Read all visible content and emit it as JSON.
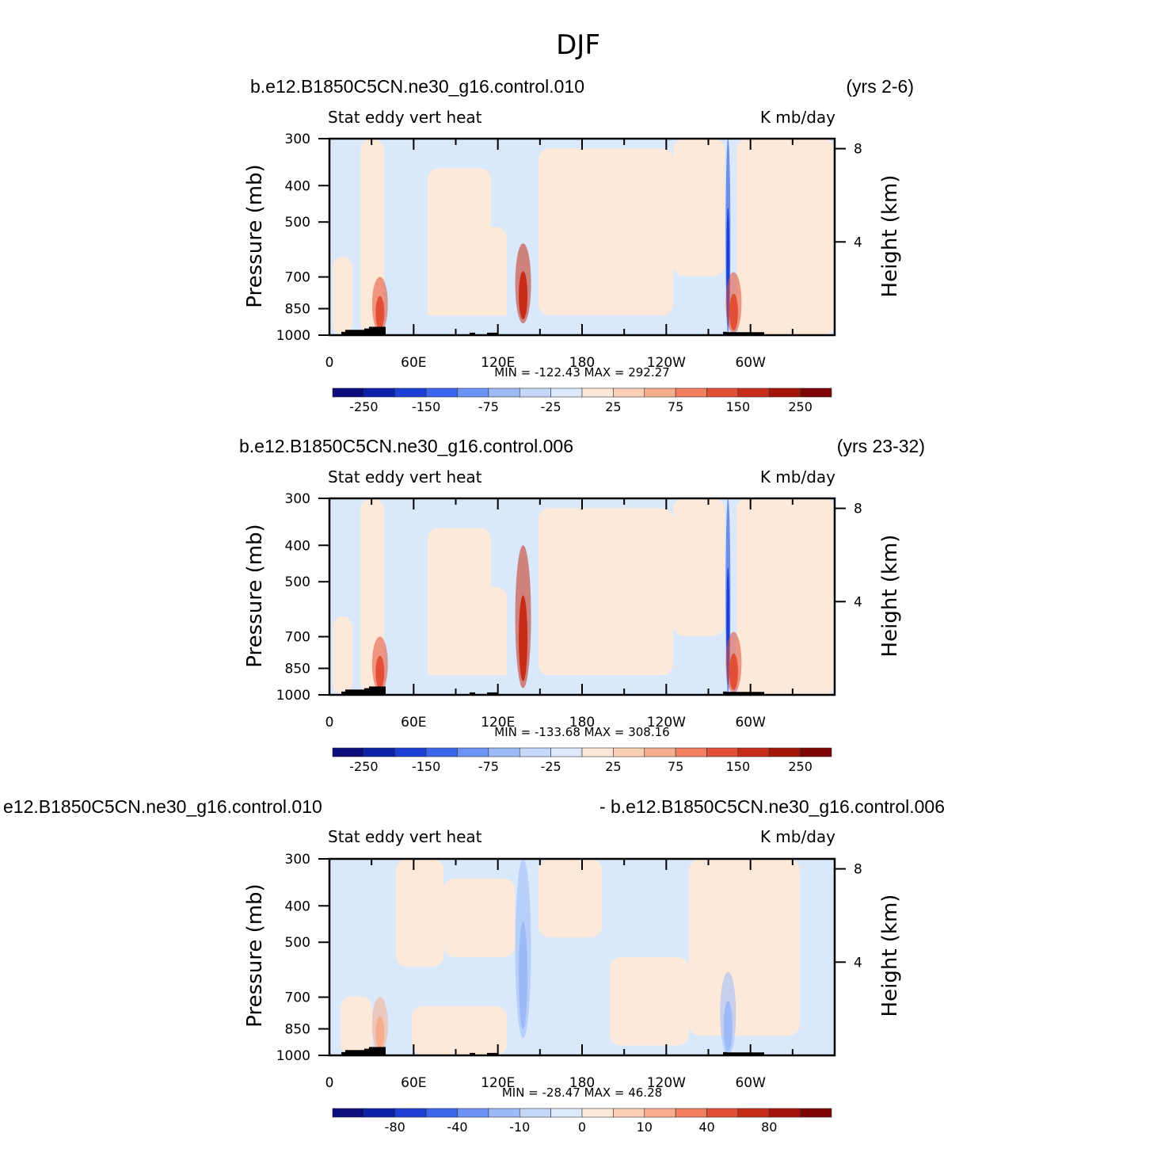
{
  "figure_title": "DJF",
  "panels": [
    {
      "case_name": "b.e12.B1850C5CN.ne30_g16.control.010",
      "years": "(yrs 2-6)",
      "variable_label": "Stat eddy vert heat",
      "units_label": "K mb/day",
      "ylabel_left": "Pressure (mb)",
      "ylabel_right": "Height (km)",
      "stats": "MIN = -122.43   MAX = 292.27",
      "colorbar_labels": [
        "-250",
        "-150",
        "-75",
        "-25",
        "25",
        "75",
        "150",
        "250"
      ]
    },
    {
      "case_name": "b.e12.B1850C5CN.ne30_g16.control.006",
      "years": "(yrs 23-32)",
      "variable_label": "Stat eddy vert heat",
      "units_label": "K mb/day",
      "ylabel_left": "Pressure (mb)",
      "ylabel_right": "Height (km)",
      "stats": "MIN = -133.68   MAX = 308.16",
      "colorbar_labels": [
        "-250",
        "-150",
        "-75",
        "-25",
        "25",
        "75",
        "150",
        "250"
      ]
    },
    {
      "case_name": "e12.B1850C5CN.ne30_g16.control.010",
      "years": "- b.e12.B1850C5CN.ne30_g16.control.006",
      "variable_label": "Stat eddy vert heat",
      "units_label": "K mb/day",
      "ylabel_left": "Pressure (mb)",
      "ylabel_right": "Height (km)",
      "stats": "MIN = -28.47   MAX = 46.28",
      "colorbar_labels": [
        "-80",
        "-40",
        "-10",
        "0",
        "10",
        "40",
        "80"
      ]
    }
  ],
  "colors": {
    "palette": [
      "#0d0c7d",
      "#0b22a8",
      "#1c3fd6",
      "#3d66ee",
      "#6b92f5",
      "#9cbaf7",
      "#c4d9fa",
      "#dceafc",
      "#fde8d8",
      "#fbd0b6",
      "#f7ad8c",
      "#f27f5d",
      "#e24f35",
      "#c62c17",
      "#a41408",
      "#7d0505"
    ],
    "background_neg": "#d9e8fb",
    "background_pos": "#fde9da"
  },
  "chart_data": [
    {
      "type": "heatmap",
      "title": "b.e12.B1850C5CN.ne30_g16.control.010",
      "xlabel": "",
      "ylabel": "Pressure (mb)",
      "x_tick_labels": [
        "0",
        "60E",
        "120E",
        "180",
        "120W",
        "60W"
      ],
      "y_tick_labels": [
        "300",
        "400",
        "500",
        "700",
        "850",
        "1000"
      ],
      "y_ticks": [
        300,
        400,
        500,
        700,
        850,
        1000
      ],
      "y_right_ticks": [
        8,
        4
      ],
      "xlim": [
        0,
        360
      ],
      "ylim": [
        1000,
        300
      ],
      "y_scale": "log",
      "levels": [
        -250,
        -200,
        -150,
        -100,
        -75,
        -50,
        -25,
        0,
        25,
        50,
        75,
        100,
        150,
        200,
        250
      ],
      "min": -122.43,
      "max": 292.27,
      "features": [
        {
          "lon": 138,
          "p_top": 570,
          "p_bot": 930,
          "value": 200
        },
        {
          "lon": 36,
          "p_top": 700,
          "p_bot": 980,
          "value": 150
        },
        {
          "lon": 284,
          "p_top": 300,
          "p_bot": 1000,
          "value": -150
        },
        {
          "lon": 288,
          "p_top": 680,
          "p_bot": 990,
          "value": 150
        }
      ]
    },
    {
      "type": "heatmap",
      "title": "b.e12.B1850C5CN.ne30_g16.control.006",
      "xlabel": "",
      "ylabel": "Pressure (mb)",
      "x_tick_labels": [
        "0",
        "60E",
        "120E",
        "180",
        "120W",
        "60W"
      ],
      "y_tick_labels": [
        "300",
        "400",
        "500",
        "700",
        "850",
        "1000"
      ],
      "y_ticks": [
        300,
        400,
        500,
        700,
        850,
        1000
      ],
      "y_right_ticks": [
        8,
        4
      ],
      "xlim": [
        0,
        360
      ],
      "ylim": [
        1000,
        300
      ],
      "y_scale": "log",
      "levels": [
        -250,
        -200,
        -150,
        -100,
        -75,
        -50,
        -25,
        0,
        25,
        50,
        75,
        100,
        150,
        200,
        250
      ],
      "min": -133.68,
      "max": 308.16,
      "features": [
        {
          "lon": 138,
          "p_top": 400,
          "p_bot": 960,
          "value": 200
        },
        {
          "lon": 36,
          "p_top": 700,
          "p_bot": 980,
          "value": 150
        },
        {
          "lon": 284,
          "p_top": 300,
          "p_bot": 1000,
          "value": -150
        },
        {
          "lon": 288,
          "p_top": 680,
          "p_bot": 990,
          "value": 150
        }
      ]
    },
    {
      "type": "heatmap",
      "title": "e12.B1850C5CN.ne30_g16.control.010 - b.e12.B1850C5CN.ne30_g16.control.006",
      "xlabel": "",
      "ylabel": "Pressure (mb)",
      "x_tick_labels": [
        "0",
        "60E",
        "120E",
        "180",
        "120W",
        "60W"
      ],
      "y_tick_labels": [
        "300",
        "400",
        "500",
        "700",
        "850",
        "1000"
      ],
      "y_ticks": [
        300,
        400,
        500,
        700,
        850,
        1000
      ],
      "y_right_ticks": [
        8,
        4
      ],
      "xlim": [
        0,
        360
      ],
      "ylim": [
        1000,
        300
      ],
      "y_scale": "log",
      "levels": [
        -80,
        -60,
        -40,
        -20,
        -10,
        -5,
        0,
        5,
        10,
        20,
        40,
        60,
        80
      ],
      "min": -28.47,
      "max": 46.28,
      "features": [
        {
          "lon": 138,
          "p_top": 300,
          "p_bot": 900,
          "value": -10
        },
        {
          "lon": 36,
          "p_top": 700,
          "p_bot": 980,
          "value": 20
        },
        {
          "lon": 284,
          "p_top": 600,
          "p_bot": 1000,
          "value": -10
        }
      ]
    }
  ]
}
